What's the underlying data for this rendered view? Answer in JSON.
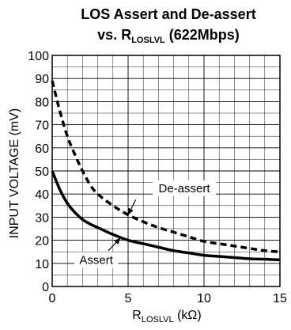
{
  "chart_data": {
    "type": "line",
    "title_line1": "LOS Assert and De-assert",
    "title_line2_main": "vs. R",
    "title_line2_sub": "LOSLVL",
    "title_line2_tail": " (622Mbps)",
    "ylabel": "INPUT VOLTAGE (mV)",
    "xlabel_main": "R",
    "xlabel_sub": "LOSLVL",
    "xlabel_tail": " (kΩ)",
    "xlim": [
      0,
      15
    ],
    "ylim": [
      0,
      100
    ],
    "x_ticks": [
      0,
      5,
      10,
      15
    ],
    "y_ticks": [
      0,
      10,
      20,
      30,
      40,
      50,
      60,
      70,
      80,
      90,
      100
    ],
    "grid": true,
    "series": [
      {
        "name": "De-assert",
        "style": "dashed",
        "x": [
          0,
          0.5,
          1,
          1.5,
          2,
          2.5,
          3,
          4,
          5,
          6,
          7,
          8,
          9,
          10,
          11,
          12,
          13,
          14,
          15
        ],
        "y": [
          89,
          76,
          65,
          57,
          50,
          44,
          40,
          35,
          31,
          28,
          25.5,
          23.5,
          21.5,
          19.5,
          18.5,
          17.5,
          16.5,
          15.5,
          15
        ]
      },
      {
        "name": "Assert",
        "style": "solid",
        "x": [
          0,
          0.5,
          1,
          1.5,
          2,
          2.5,
          3,
          4,
          5,
          6,
          7,
          8,
          9,
          10,
          11,
          12,
          13,
          14,
          15
        ],
        "y": [
          50,
          42,
          36,
          32,
          29,
          27,
          25.5,
          22.5,
          20,
          18.5,
          17,
          15.5,
          14.5,
          13.5,
          13,
          12.5,
          12,
          11.8,
          11.5
        ]
      }
    ],
    "annotations": [
      {
        "text": "De-assert",
        "x": 8.7,
        "y": 42.5,
        "arrow_to": [
          5.0,
          31.0
        ],
        "arrow_from": [
          5.5,
          37.5
        ]
      },
      {
        "text": "Assert",
        "x": 2.9,
        "y": 11.5,
        "arrow_to": [
          4.5,
          21.0
        ],
        "arrow_from": [
          3.7,
          15.5
        ]
      }
    ]
  }
}
